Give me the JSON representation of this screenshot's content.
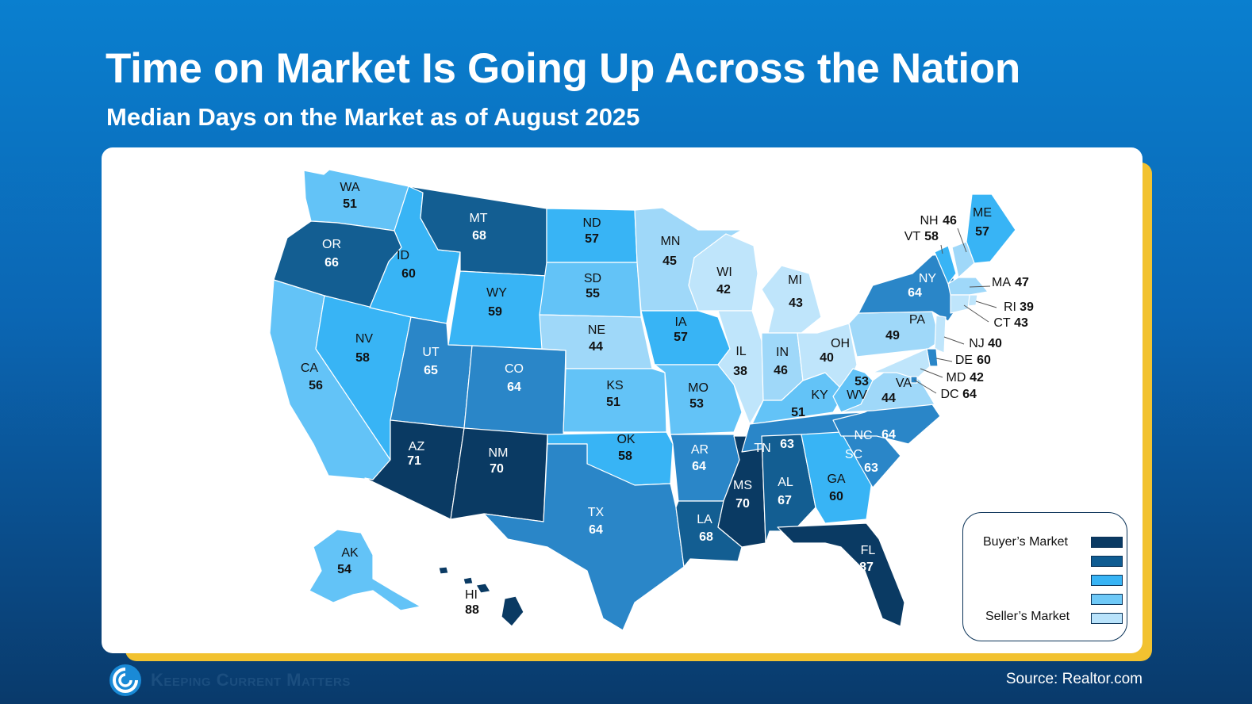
{
  "title": "Time on Market Is Going Up Across the Nation",
  "subtitle": "Median Days on the Market as of August 2025",
  "source": "Source: Realtor.com",
  "logo_text": "Keeping Current Matters",
  "legend": {
    "top_label": "Buyer’s Market",
    "bottom_label": "Seller’s Market",
    "colors": [
      "#0a3a63",
      "#0f5c92",
      "#38b4f5",
      "#6fc9f7",
      "#b9e3fb"
    ]
  },
  "colors": {
    "band_1": "#0a3a63",
    "band_2": "#135e92",
    "band_3": "#2a86c8",
    "band_4": "#38b4f5",
    "band_5": "#63c3f7",
    "band_6": "#9fd8f9",
    "band_7": "#bfe5fb",
    "background": "#0b66b3",
    "accent": "#f2c230"
  },
  "states": [
    {
      "abbr": "WA",
      "days": 51
    },
    {
      "abbr": "OR",
      "days": 66
    },
    {
      "abbr": "CA",
      "days": 56
    },
    {
      "abbr": "NV",
      "days": 58
    },
    {
      "abbr": "ID",
      "days": 60
    },
    {
      "abbr": "MT",
      "days": 68
    },
    {
      "abbr": "WY",
      "days": 59
    },
    {
      "abbr": "UT",
      "days": 65
    },
    {
      "abbr": "AZ",
      "days": 71
    },
    {
      "abbr": "CO",
      "days": 64
    },
    {
      "abbr": "NM",
      "days": 70
    },
    {
      "abbr": "ND",
      "days": 57
    },
    {
      "abbr": "SD",
      "days": 55
    },
    {
      "abbr": "NE",
      "days": 44
    },
    {
      "abbr": "KS",
      "days": 51
    },
    {
      "abbr": "OK",
      "days": 58
    },
    {
      "abbr": "TX",
      "days": 64
    },
    {
      "abbr": "MN",
      "days": 45
    },
    {
      "abbr": "IA",
      "days": 57
    },
    {
      "abbr": "MO",
      "days": 53
    },
    {
      "abbr": "AR",
      "days": 64
    },
    {
      "abbr": "LA",
      "days": 68
    },
    {
      "abbr": "WI",
      "days": 42
    },
    {
      "abbr": "IL",
      "days": 38
    },
    {
      "abbr": "MS",
      "days": 70
    },
    {
      "abbr": "MI",
      "days": 43
    },
    {
      "abbr": "IN",
      "days": 46
    },
    {
      "abbr": "KY",
      "days": 51
    },
    {
      "abbr": "TN",
      "days": 63
    },
    {
      "abbr": "AL",
      "days": 67
    },
    {
      "abbr": "OH",
      "days": 40
    },
    {
      "abbr": "WV",
      "days": 53
    },
    {
      "abbr": "GA",
      "days": 60
    },
    {
      "abbr": "FL",
      "days": 87
    },
    {
      "abbr": "SC",
      "days": 63
    },
    {
      "abbr": "NC",
      "days": 64
    },
    {
      "abbr": "VA",
      "days": 44
    },
    {
      "abbr": "PA",
      "days": 49
    },
    {
      "abbr": "NY",
      "days": 64
    },
    {
      "abbr": "ME",
      "days": 57
    },
    {
      "abbr": "AK",
      "days": 54
    },
    {
      "abbr": "HI",
      "days": 88
    },
    {
      "abbr": "NH",
      "days": 46
    },
    {
      "abbr": "VT",
      "days": 58
    },
    {
      "abbr": "MA",
      "days": 47
    },
    {
      "abbr": "RI",
      "days": 39
    },
    {
      "abbr": "CT",
      "days": 43
    },
    {
      "abbr": "NJ",
      "days": 40
    },
    {
      "abbr": "DE",
      "days": 60
    },
    {
      "abbr": "MD",
      "days": 42
    },
    {
      "abbr": "DC",
      "days": 64
    }
  ]
}
